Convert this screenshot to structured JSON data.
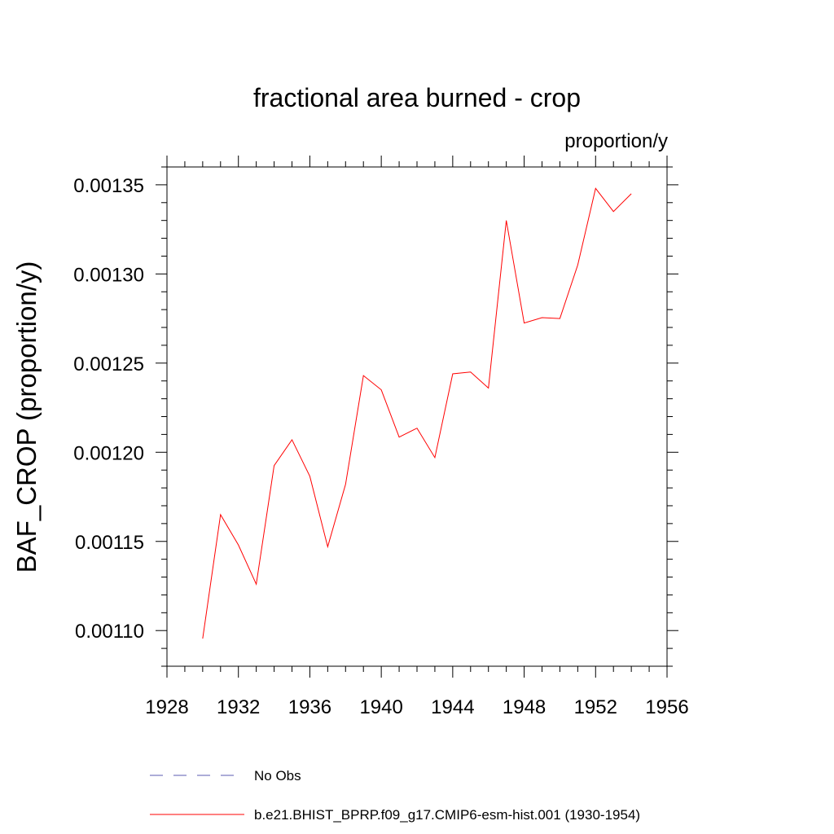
{
  "chart_data": {
    "type": "line",
    "title": "fractional area burned - crop",
    "units_label": "proportion/y",
    "ylabel": "BAF_CROP  (proportion/y)",
    "xlabel": "",
    "xlim": [
      1928,
      1956
    ],
    "ylim": [
      0.00108,
      0.00136
    ],
    "x_ticks": [
      "1928",
      "1932",
      "1936",
      "1940",
      "1944",
      "1948",
      "1952",
      "1956"
    ],
    "y_ticks": [
      "0.00110",
      "0.00115",
      "0.00120",
      "0.00125",
      "0.00130",
      "0.00135"
    ],
    "x_tick_values": [
      1928,
      1932,
      1936,
      1940,
      1944,
      1948,
      1952,
      1956
    ],
    "y_tick_values": [
      0.0011,
      0.00115,
      0.0012,
      0.00125,
      0.0013,
      0.00135
    ],
    "grid": false,
    "legend_position": "bottom",
    "series": [
      {
        "name": "b.e21.BHIST_BPRP.f09_g17.CMIP6-esm-hist.001 (1930-1954)",
        "color": "#ff0000",
        "style": "solid",
        "x": [
          1930,
          1931,
          1932,
          1933,
          1934,
          1935,
          1936,
          1937,
          1938,
          1939,
          1940,
          1941,
          1942,
          1943,
          1944,
          1945,
          1946,
          1947,
          1948,
          1949,
          1950,
          1951,
          1952,
          1953,
          1954
        ],
        "values": [
          0.0010955,
          0.001165,
          0.001148,
          0.001126,
          0.0011925,
          0.001207,
          0.0011865,
          0.001147,
          0.001182,
          0.001243,
          0.001235,
          0.0012085,
          0.0012135,
          0.001197,
          0.001244,
          0.001245,
          0.001236,
          0.00133,
          0.0012725,
          0.0012755,
          0.001275,
          0.001305,
          0.001348,
          0.001335,
          0.001345
        ]
      }
    ],
    "legend": [
      {
        "label": "No Obs",
        "color": "#5b5bb0",
        "style": "dashed"
      },
      {
        "label": "b.e21.BHIST_BPRP.f09_g17.CMIP6-esm-hist.001 (1930-1954)",
        "color": "#ff0000",
        "style": "solid"
      }
    ]
  }
}
